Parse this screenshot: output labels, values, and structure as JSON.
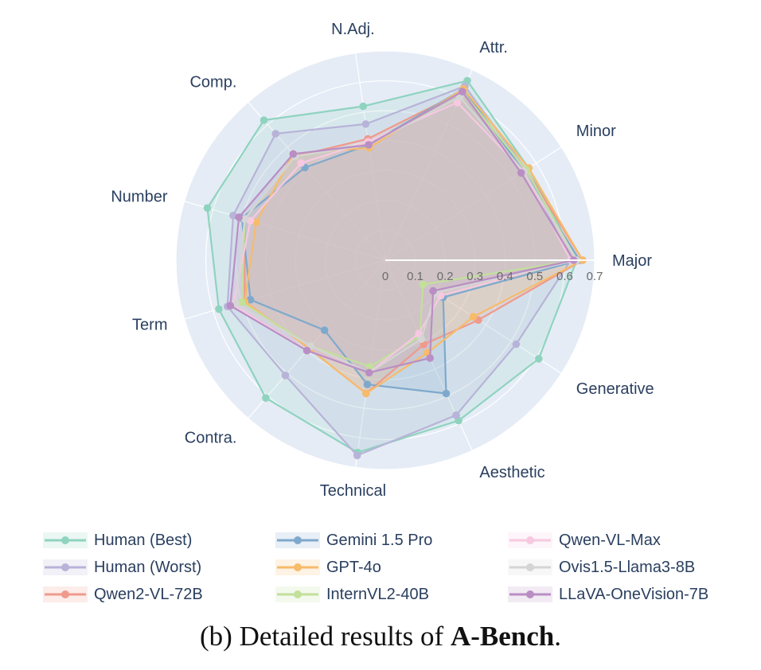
{
  "chart_data": {
    "type": "radar",
    "axes": [
      "Major",
      "Minor",
      "Attr.",
      "N.Adj.",
      "Comp.",
      "Number",
      "Term",
      "Contra.",
      "Technical",
      "Aesthetic",
      "Generative"
    ],
    "radial_ticks": [
      "0",
      "0.1",
      "0.2",
      "0.3",
      "0.4",
      "0.5",
      "0.6",
      "0.7"
    ],
    "radial_range": [
      0,
      0.7
    ],
    "series": [
      {
        "name": "Human (Best)",
        "color": "#8fd3bf",
        "values": [
          0.64,
          0.57,
          0.66,
          0.52,
          0.62,
          0.62,
          0.58,
          0.61,
          0.65,
          0.59,
          0.61
        ]
      },
      {
        "name": "Human (Worst)",
        "color": "#b8b3d8",
        "values": [
          0.62,
          0.56,
          0.64,
          0.46,
          0.56,
          0.53,
          0.55,
          0.51,
          0.66,
          0.57,
          0.52
        ]
      },
      {
        "name": "Qwen2-VL-72B",
        "color": "#ef9a8c",
        "values": [
          0.66,
          0.56,
          0.62,
          0.41,
          0.46,
          0.49,
          0.49,
          0.39,
          0.45,
          0.31,
          0.37
        ]
      },
      {
        "name": "Gemini 1.5 Pro",
        "color": "#7fa9cc",
        "values": [
          0.65,
          0.55,
          0.63,
          0.39,
          0.41,
          0.5,
          0.47,
          0.31,
          0.42,
          0.49,
          0.23
        ]
      },
      {
        "name": "GPT-4o",
        "color": "#f7bb6a",
        "values": [
          0.66,
          0.57,
          0.63,
          0.38,
          0.47,
          0.45,
          0.49,
          0.39,
          0.45,
          0.34,
          0.35
        ]
      },
      {
        "name": "InternVL2-40B",
        "color": "#c2e09a",
        "values": [
          0.64,
          0.56,
          0.62,
          0.39,
          0.46,
          0.49,
          0.5,
          0.38,
          0.36,
          0.28,
          0.15
        ]
      },
      {
        "name": "Qwen-VL-Max",
        "color": "#f6c9e0",
        "values": [
          0.62,
          0.55,
          0.58,
          0.4,
          0.43,
          0.47,
          0.53,
          0.4,
          0.38,
          0.27,
          0.22
        ]
      },
      {
        "name": "Ovis1.5-Llama3-8B",
        "color": "#d5d5d5",
        "values": [
          0.64,
          0.55,
          0.6,
          0.39,
          0.46,
          0.49,
          0.52,
          0.38,
          0.38,
          0.29,
          0.2
        ]
      },
      {
        "name": "LLaVA-OneVision-7B",
        "color": "#b98ec4",
        "values": [
          0.63,
          0.54,
          0.62,
          0.39,
          0.47,
          0.51,
          0.54,
          0.4,
          0.38,
          0.36,
          0.19
        ]
      }
    ]
  },
  "caption": {
    "prefix": "(b) Detailed results of ",
    "bold": "A-Bench",
    "suffix": "."
  }
}
